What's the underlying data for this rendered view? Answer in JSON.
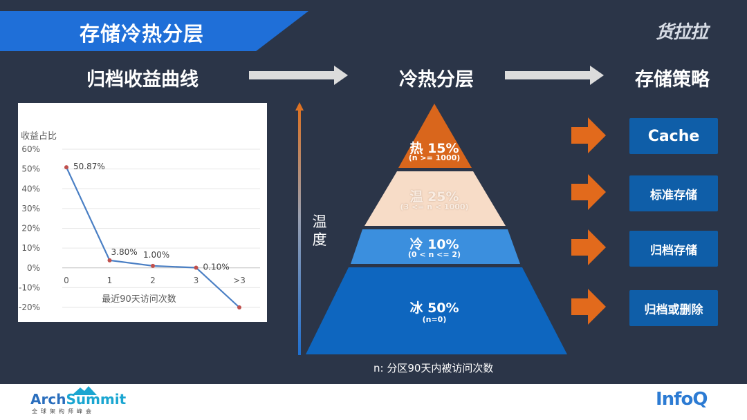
{
  "header": {
    "title": "存储冷热分层",
    "brand": "货拉拉"
  },
  "columns": {
    "left": "归档收益曲线",
    "middle": "冷热分层",
    "right": "存储策略"
  },
  "chart_data": {
    "type": "line",
    "ylabel": "收益占比",
    "xlabel": "最近90天访问次数",
    "categories": [
      "0",
      "1",
      "2",
      "3",
      ">3"
    ],
    "values": [
      50.87,
      3.8,
      1.0,
      0.1,
      -20
    ],
    "data_labels": [
      "50.87%",
      "3.80%",
      "1.00%",
      "0.10%",
      ""
    ],
    "yticks": [
      "60%",
      "50%",
      "40%",
      "30%",
      "20%",
      "10%",
      "0%",
      "-10%",
      "-20%"
    ],
    "ylim": [
      -20,
      60
    ],
    "grid": true,
    "colors": {
      "line": "#4a7fc4",
      "marker": "#c0504d"
    }
  },
  "pyramid": {
    "tiers": [
      {
        "main": "热 15%",
        "sub": "(n >= 1000)",
        "color": "#d9661c"
      },
      {
        "main": "温 25%",
        "sub": "(3 <= n < 1000)",
        "color": "#f7dcc7"
      },
      {
        "main": "冷 10%",
        "sub": "(0 < n <= 2)",
        "color": "#3b8fde"
      },
      {
        "main": "冰 50%",
        "sub": "(n=0)",
        "color": "#0e66bf"
      }
    ],
    "axis_label": "温度",
    "note": "n: 分区90天内被访问次数"
  },
  "strategies": [
    "Cache",
    "标准存储",
    "归档存储",
    "归档或删除"
  ],
  "footer": {
    "left_logo_a": "Arch",
    "left_logo_b": "Summit",
    "left_sub": "全球架构师峰会",
    "right_logo": "InfoQ"
  }
}
